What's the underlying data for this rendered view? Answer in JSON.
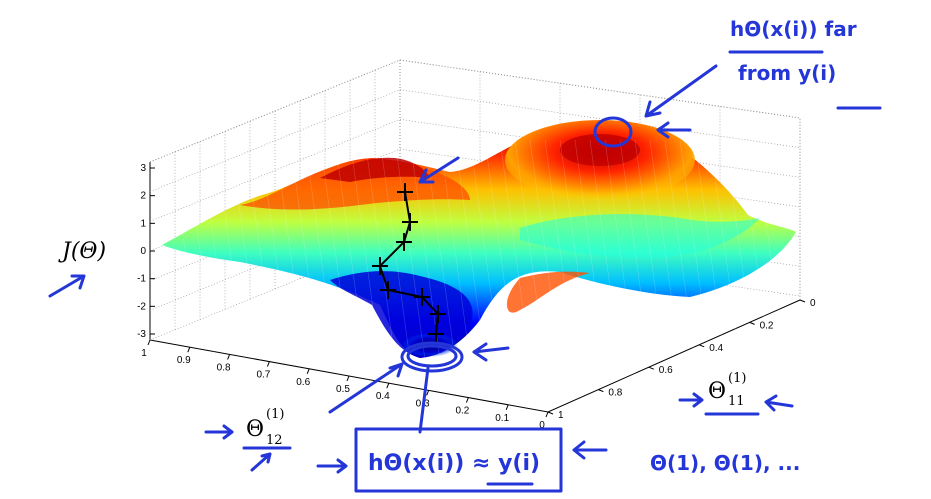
{
  "chart_data": {
    "type": "surface",
    "title": "",
    "zlabel": "J(Θ)",
    "z_ticks": [
      "3",
      "2",
      "1",
      "0",
      "-1",
      "-2",
      "-3"
    ],
    "zlim": [
      -3,
      3
    ],
    "left_axis_ticks": [
      "1",
      "0.9",
      "0.8",
      "0.7",
      "0.6",
      "0.5",
      "0.4",
      "0.3",
      "0.2",
      "0.1",
      "0"
    ],
    "right_axis_ticks": [
      "0",
      "0.2",
      "0.4",
      "0.6",
      "0.8",
      "1"
    ],
    "grid": true,
    "colormap": "jet",
    "descent_path_points": 8,
    "left_axis_math": {
      "base": "Θ",
      "sup": "(1)",
      "sub": "12"
    },
    "right_axis_math": {
      "base": "Θ",
      "sup": "(1)",
      "sub": "11"
    }
  },
  "annotations": {
    "top_numerator": "hΘ(x(i)) far",
    "top_denominator": "from y(i)",
    "bottom_box": "hΘ(x(i)) ≈ y(i)",
    "bottom_right": "Θ(1), Θ(1), ...",
    "ink_color": "#2436d8"
  }
}
